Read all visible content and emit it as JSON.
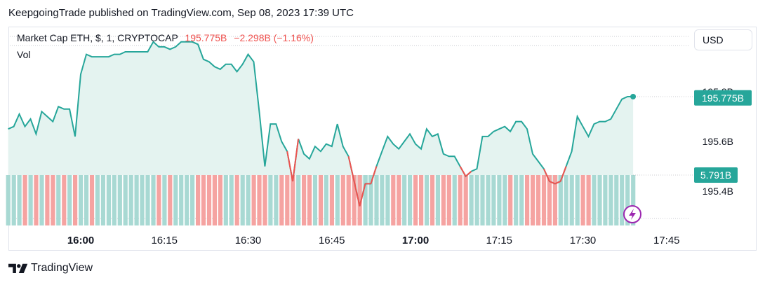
{
  "header": {
    "published_line": "KeepgoingTrade published on TradingView.com, Sep 08, 2023 17:39 UTC"
  },
  "legend": {
    "symbol": "Market Cap ETH, $, 1, CRYPTOCAP",
    "value": "195.775B",
    "change": "−2.298B (−1.16%)",
    "vol_label": "Vol"
  },
  "toolbar": {
    "currency": "USD"
  },
  "footer": {
    "brand": "TradingView"
  },
  "colors": {
    "line": "#26a69a",
    "area": "#e4f3f0",
    "down_line": "#ef5350",
    "vol_up": "#a8d9d3",
    "vol_down": "#f5a3a1",
    "price_tag": "#26a69a",
    "vol_tag": "#26a69a",
    "gridline": "#9598a1",
    "lightning": "#9c27b0"
  },
  "chart_data": {
    "type": "area",
    "x_ticks": [
      {
        "label": "16:00",
        "t": 0,
        "bold": true
      },
      {
        "label": "16:15",
        "t": 15,
        "bold": false
      },
      {
        "label": "16:30",
        "t": 30,
        "bold": false
      },
      {
        "label": "16:45",
        "t": 45,
        "bold": false
      },
      {
        "label": "17:00",
        "t": 60,
        "bold": true
      },
      {
        "label": "17:15",
        "t": 75,
        "bold": false
      },
      {
        "label": "17:30",
        "t": 90,
        "bold": false
      },
      {
        "label": "17:45",
        "t": 105,
        "bold": false
      }
    ],
    "y_ticks": [
      {
        "label": "195.8B",
        "v": 195.8
      },
      {
        "label": "195.6B",
        "v": 195.6
      },
      {
        "label": "195.4B",
        "v": 195.4
      }
    ],
    "ylim": [
      195.33,
      196.005
    ],
    "x_start": -13,
    "price_tag": {
      "label": "195.775B",
      "v": 195.775
    },
    "vol_tag": {
      "label": "5.791B"
    },
    "series": [
      {
        "values": [
          195.65,
          195.66,
          195.71,
          195.66,
          195.69,
          195.63,
          195.72,
          195.7,
          195.68,
          195.74,
          195.73,
          195.73,
          195.62,
          195.87,
          195.95,
          195.94,
          195.94,
          195.94,
          195.94,
          195.95,
          195.95,
          195.96,
          195.96,
          195.96,
          195.96,
          195.96,
          196.0,
          195.98,
          195.98,
          195.97,
          195.98,
          196.0,
          196.0,
          196.0,
          195.99,
          195.93,
          195.92,
          195.9,
          195.89,
          195.91,
          195.91,
          195.88,
          195.91,
          195.95,
          195.92,
          195.72,
          195.5,
          195.67,
          195.67,
          195.6,
          195.56,
          195.44,
          195.61,
          195.55,
          195.53,
          195.58,
          195.56,
          195.59,
          195.58,
          195.67,
          195.58,
          195.54,
          195.44,
          195.34,
          195.43,
          195.43,
          195.5,
          195.56,
          195.62,
          195.59,
          195.57,
          195.6,
          195.63,
          195.59,
          195.57,
          195.65,
          195.62,
          195.63,
          195.55,
          195.54,
          195.54,
          195.5,
          195.46,
          195.48,
          195.49,
          195.62,
          195.62,
          195.64,
          195.65,
          195.66,
          195.64,
          195.68,
          195.68,
          195.65,
          195.55,
          195.52,
          195.49,
          195.44,
          195.43,
          195.44,
          195.5,
          195.56,
          195.7,
          195.66,
          195.62,
          195.67,
          195.68,
          195.68,
          195.69,
          195.73,
          195.77,
          195.78,
          195.78
        ]
      }
    ]
  }
}
